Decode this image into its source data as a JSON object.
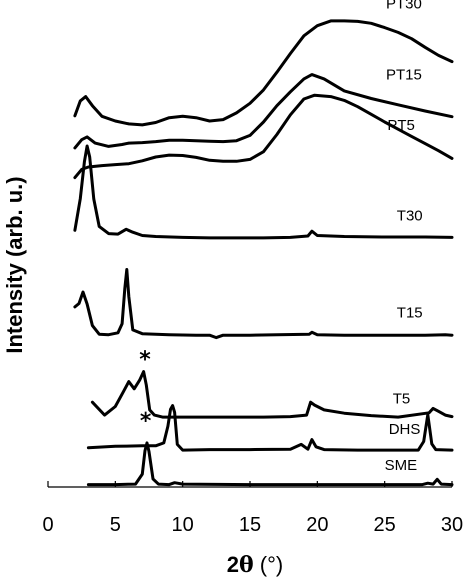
{
  "chart_data": {
    "type": "line",
    "title": "",
    "xlabel_prefix": "2",
    "xlabel_symbol": "θ",
    "xlabel_unit": " (°)",
    "ylabel": "Intensity (arb. u.)",
    "xlim": [
      0,
      30
    ],
    "ylim": [
      0,
      100
    ],
    "xticks": [
      "0",
      "5",
      "10",
      "15",
      "20",
      "25",
      "30"
    ],
    "grid": false,
    "legend": "none",
    "annotation_mark": "*",
    "series": [
      {
        "name": "PT30",
        "x": [
          2,
          2.4,
          2.8,
          3.3,
          4,
          5,
          6,
          7,
          8,
          9,
          10,
          11,
          12,
          13,
          14,
          15,
          16,
          17,
          18,
          19,
          20,
          21,
          22,
          23,
          24,
          25,
          26,
          27,
          28,
          29,
          30
        ],
        "y": [
          77.5,
          80.6,
          81.5,
          79.6,
          77.4,
          76.4,
          75.8,
          75.6,
          76.1,
          77.1,
          77.4,
          77.1,
          76.4,
          76.7,
          78.1,
          80.1,
          82.9,
          86.6,
          90.5,
          94.2,
          96.3,
          97.3,
          97.3,
          97.2,
          96.8,
          95.9,
          94.9,
          93.6,
          91.8,
          90.1,
          88.8
        ]
      },
      {
        "name": "PT15",
        "x": [
          2,
          2.5,
          2.9,
          3.5,
          4.5,
          5.5,
          6,
          7,
          8,
          9,
          10,
          11,
          12,
          13,
          14,
          15,
          16,
          17,
          18,
          19,
          19.6,
          20.5,
          22,
          24,
          26,
          28,
          30
        ],
        "y": [
          70.8,
          72.5,
          73.1,
          71.8,
          71.1,
          71.5,
          71.8,
          71.9,
          72.1,
          72.4,
          72.4,
          72.3,
          72.2,
          72.1,
          72.3,
          73.4,
          76.2,
          79.6,
          82.5,
          85.2,
          86.1,
          85.2,
          82.7,
          81.1,
          79.8,
          78.5,
          77.3
        ]
      },
      {
        "name": "PT5",
        "x": [
          2,
          2.5,
          3,
          4,
          5,
          6,
          7,
          8,
          9,
          10,
          11,
          12,
          13,
          14,
          15,
          16,
          17,
          18,
          19,
          19.8,
          21,
          22,
          23,
          24,
          25,
          26,
          27,
          28,
          29,
          30
        ],
        "y": [
          64.6,
          66.3,
          66.8,
          67.1,
          67.3,
          67.5,
          68.1,
          68.9,
          69.3,
          69.2,
          68.8,
          68.2,
          68.0,
          68.0,
          68.4,
          70.0,
          73.6,
          77.7,
          81.0,
          81.8,
          81.5,
          80.7,
          79.4,
          77.8,
          76.2,
          74.7,
          73.2,
          71.7,
          70.2,
          68.6
        ]
      },
      {
        "name": "T30",
        "x": [
          2,
          2.4,
          2.7,
          2.9,
          3.1,
          3.4,
          3.8,
          4.5,
          5.2,
          5.8,
          6.3,
          7,
          8,
          10,
          12,
          14,
          16,
          18,
          19.3,
          19.6,
          20,
          22,
          25,
          28,
          30
        ],
        "y": [
          53.6,
          60.2,
          67.9,
          71.2,
          68.9,
          60.1,
          54.4,
          52.9,
          52.8,
          53.8,
          53.2,
          52.5,
          52.3,
          52.1,
          52.0,
          52.0,
          52.0,
          52.1,
          52.4,
          53.4,
          52.5,
          52.3,
          52.2,
          52.2,
          52.1
        ]
      },
      {
        "name": "T15",
        "x": [
          2,
          2.3,
          2.6,
          2.9,
          3.3,
          3.8,
          4.5,
          5.2,
          5.5,
          5.7,
          5.85,
          6.0,
          6.3,
          7,
          9,
          11,
          12,
          12.5,
          13,
          15,
          17,
          19.4,
          19.6,
          20,
          22,
          25,
          28,
          29.5,
          30
        ],
        "y": [
          37.6,
          38.3,
          40.7,
          38.2,
          33.7,
          31.9,
          31.8,
          32.2,
          34.1,
          41.4,
          45.4,
          39.8,
          32.8,
          32.0,
          31.8,
          31.7,
          31.7,
          31.2,
          31.7,
          31.7,
          31.8,
          31.9,
          32.3,
          31.8,
          31.7,
          31.7,
          31.7,
          31.8,
          31.7
        ]
      },
      {
        "name": "T5",
        "x": [
          3.3,
          4.2,
          5,
          5.6,
          6.0,
          6.4,
          6.8,
          7.1,
          7.3,
          7.55,
          7.9,
          8.5,
          10,
          12,
          14,
          16,
          18,
          19.2,
          19.5,
          19.8,
          20.5,
          22,
          24,
          26,
          28.3,
          28.6,
          29,
          29.5,
          30
        ],
        "y": [
          17.7,
          15.0,
          16.8,
          19.9,
          22.0,
          20.5,
          22.3,
          24.1,
          21.3,
          16.1,
          15.0,
          14.6,
          14.6,
          14.6,
          14.6,
          14.6,
          14.7,
          15.0,
          17.7,
          17.1,
          16.1,
          15.4,
          14.9,
          14.6,
          15.5,
          16.4,
          15.8,
          15.0,
          14.7
        ]
      },
      {
        "name": "DHS",
        "x": [
          3,
          5,
          7,
          8,
          8.6,
          8.9,
          9.1,
          9.25,
          9.4,
          9.6,
          10,
          12,
          15,
          18,
          18.8,
          19.3,
          19.6,
          19.9,
          20.5,
          23,
          26,
          27.5,
          27.9,
          28.2,
          28.5,
          28.8,
          30
        ],
        "y": [
          8.2,
          8.5,
          8.6,
          8.6,
          9.2,
          12.7,
          16.2,
          17.0,
          15.6,
          8.9,
          7.7,
          7.8,
          7.8,
          7.9,
          8.9,
          7.9,
          9.9,
          8.4,
          7.8,
          7.7,
          7.7,
          7.7,
          9.5,
          15.1,
          9.0,
          7.8,
          7.7
        ]
      },
      {
        "name": "SME",
        "x": [
          3,
          5,
          6.5,
          7.0,
          7.2,
          7.35,
          7.5,
          7.8,
          8.2,
          9,
          9.4,
          10,
          15,
          20,
          25,
          27.8,
          28.2,
          28.6,
          28.9,
          29.2,
          30
        ],
        "y": [
          0.5,
          0.5,
          0.6,
          2.7,
          7.6,
          9.2,
          7.4,
          1.7,
          0.6,
          0.5,
          0.9,
          0.6,
          0.5,
          0.5,
          0.5,
          0.5,
          0.8,
          0.6,
          1.6,
          0.6,
          0.5
        ]
      }
    ],
    "label_positions_data": [
      {
        "series": "PT30",
        "x": 25.1,
        "y": 99.9
      },
      {
        "series": "PT15",
        "x": 25.1,
        "y": 85.1
      },
      {
        "series": "PT5",
        "x": 25.2,
        "y": 74.5
      },
      {
        "series": "T30",
        "x": 25.9,
        "y": 55.6
      },
      {
        "series": "T15",
        "x": 25.9,
        "y": 35.4
      },
      {
        "series": "T5",
        "x": 25.6,
        "y": 17.4
      },
      {
        "series": "DHS",
        "x": 25.3,
        "y": 11.1
      },
      {
        "series": "SME",
        "x": 25.0,
        "y": 3.6
      }
    ],
    "stars_data": [
      {
        "x": 7.2,
        "y": 25.2
      },
      {
        "x": 7.25,
        "y": 12.3
      }
    ]
  }
}
